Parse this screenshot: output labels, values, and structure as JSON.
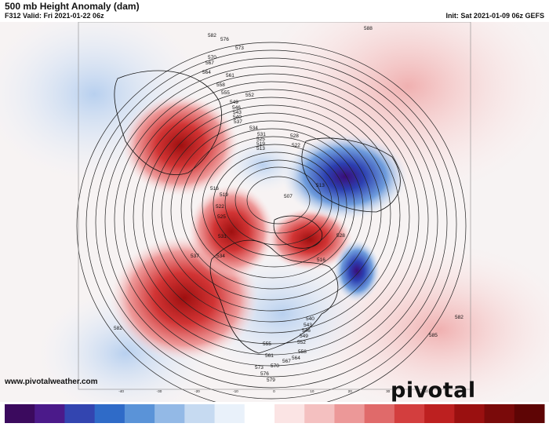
{
  "header": {
    "title": "500 mb Height Anomaly (dam)",
    "valid": "F312 Valid: Fri 2021-01-22 06z",
    "init": "Init: Sat 2021-01-09 06z GEFS"
  },
  "footer": {
    "website": "www.pivotalweather.com",
    "brand": "pivotal weather"
  },
  "contour_labels": [
    "582",
    "576",
    "573",
    "570",
    "567",
    "564",
    "561",
    "558",
    "555",
    "552",
    "549",
    "546",
    "543",
    "540",
    "537",
    "534",
    "531",
    "528",
    "525",
    "522",
    "519",
    "516",
    "513",
    "507",
    "582",
    "585",
    "588",
    "582",
    "573",
    "576",
    "579",
    "570",
    "567",
    "564",
    "561",
    "558",
    "555",
    "552",
    "549",
    "546",
    "543",
    "540",
    "537",
    "534",
    "531",
    "528",
    "525",
    "522",
    "519",
    "516",
    "513"
  ],
  "colorbar": {
    "ticks": [
      "-40",
      "-30",
      "-20",
      "-10",
      "0",
      "10",
      "20",
      "30",
      "40"
    ],
    "colors": [
      "#3b0a5e",
      "#4b1a8a",
      "#3345b0",
      "#2f6bc8",
      "#5a93d8",
      "#93b9e6",
      "#c6daf1",
      "#e9f1fa",
      "#ffffff",
      "#fbe4e4",
      "#f4c0c0",
      "#ec9898",
      "#e06a6a",
      "#d33e3e",
      "#bd2020",
      "#9a1010",
      "#7a0a0a",
      "#5e0505"
    ]
  }
}
